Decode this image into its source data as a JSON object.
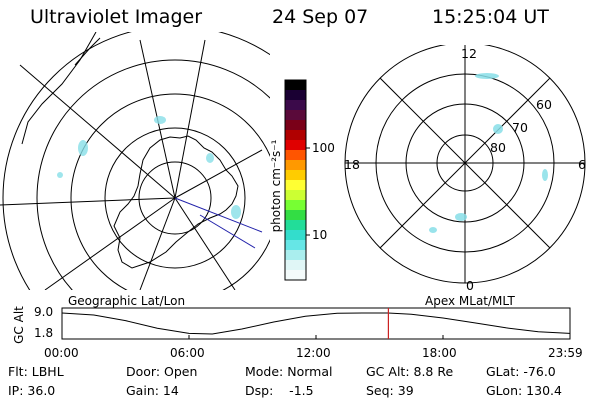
{
  "header": {
    "title": "Ultraviolet Imager",
    "date": "24 Sep 07",
    "time": "15:25:04 UT"
  },
  "panels": {
    "left_label": "Geographic Lat/Lon",
    "right_label": "Apex MLat/MLT"
  },
  "colorbar": {
    "unit_label": "photon cm⁻²s⁻¹",
    "ticks": [
      "100",
      "10"
    ],
    "colors": [
      "#000000",
      "#1a0033",
      "#3b0a4a",
      "#5a0a3a",
      "#7a0018",
      "#b00000",
      "#e00000",
      "#ff5500",
      "#ff9900",
      "#ffcc00",
      "#ffff33",
      "#ccff33",
      "#77ff33",
      "#33dd44",
      "#22dd99",
      "#33ddcc",
      "#66e6e6",
      "#aaeeee",
      "#e0f6f6",
      "#f4fbfb"
    ]
  },
  "mlt_plot": {
    "labels": {
      "top": "12",
      "bottom": "0",
      "left": "18",
      "right": "6"
    },
    "lat_labels": [
      "60",
      "70",
      "80"
    ]
  },
  "altitude_plot": {
    "ylabel": "GC Alt",
    "yticks": [
      "9.0",
      "1.8"
    ],
    "xticks": [
      "00:00",
      "06:00",
      "12:00",
      "18:00",
      "23:59"
    ],
    "trace": {
      "x_hours": [
        0,
        1.5,
        3,
        4.5,
        6,
        7.1,
        8.5,
        10,
        11.5,
        13,
        14.2,
        15.4,
        16.5,
        18,
        19.5,
        21,
        22.5,
        23.98
      ],
      "alt_re": [
        9.0,
        8.3,
        6.4,
        3.8,
        2.0,
        1.8,
        3.5,
        5.9,
        7.9,
        8.9,
        9.0,
        9.0,
        8.6,
        7.3,
        5.6,
        3.9,
        2.6,
        2.0
      ]
    },
    "current_hour": 15.42,
    "marker_color": "#cc2222"
  },
  "stats": {
    "filter": "Flt: LBHL",
    "ip": "IP: 36.0",
    "door": "Door: Open",
    "gain": "Gain: 14",
    "mode": "Mode: Normal",
    "dsp": "Dsp:    -1.5",
    "gc_alt": "GC Alt: 8.8 Re",
    "seq": "Seq: 39",
    "glat": "GLat: -76.0",
    "glon": "GLon: 130.4"
  }
}
